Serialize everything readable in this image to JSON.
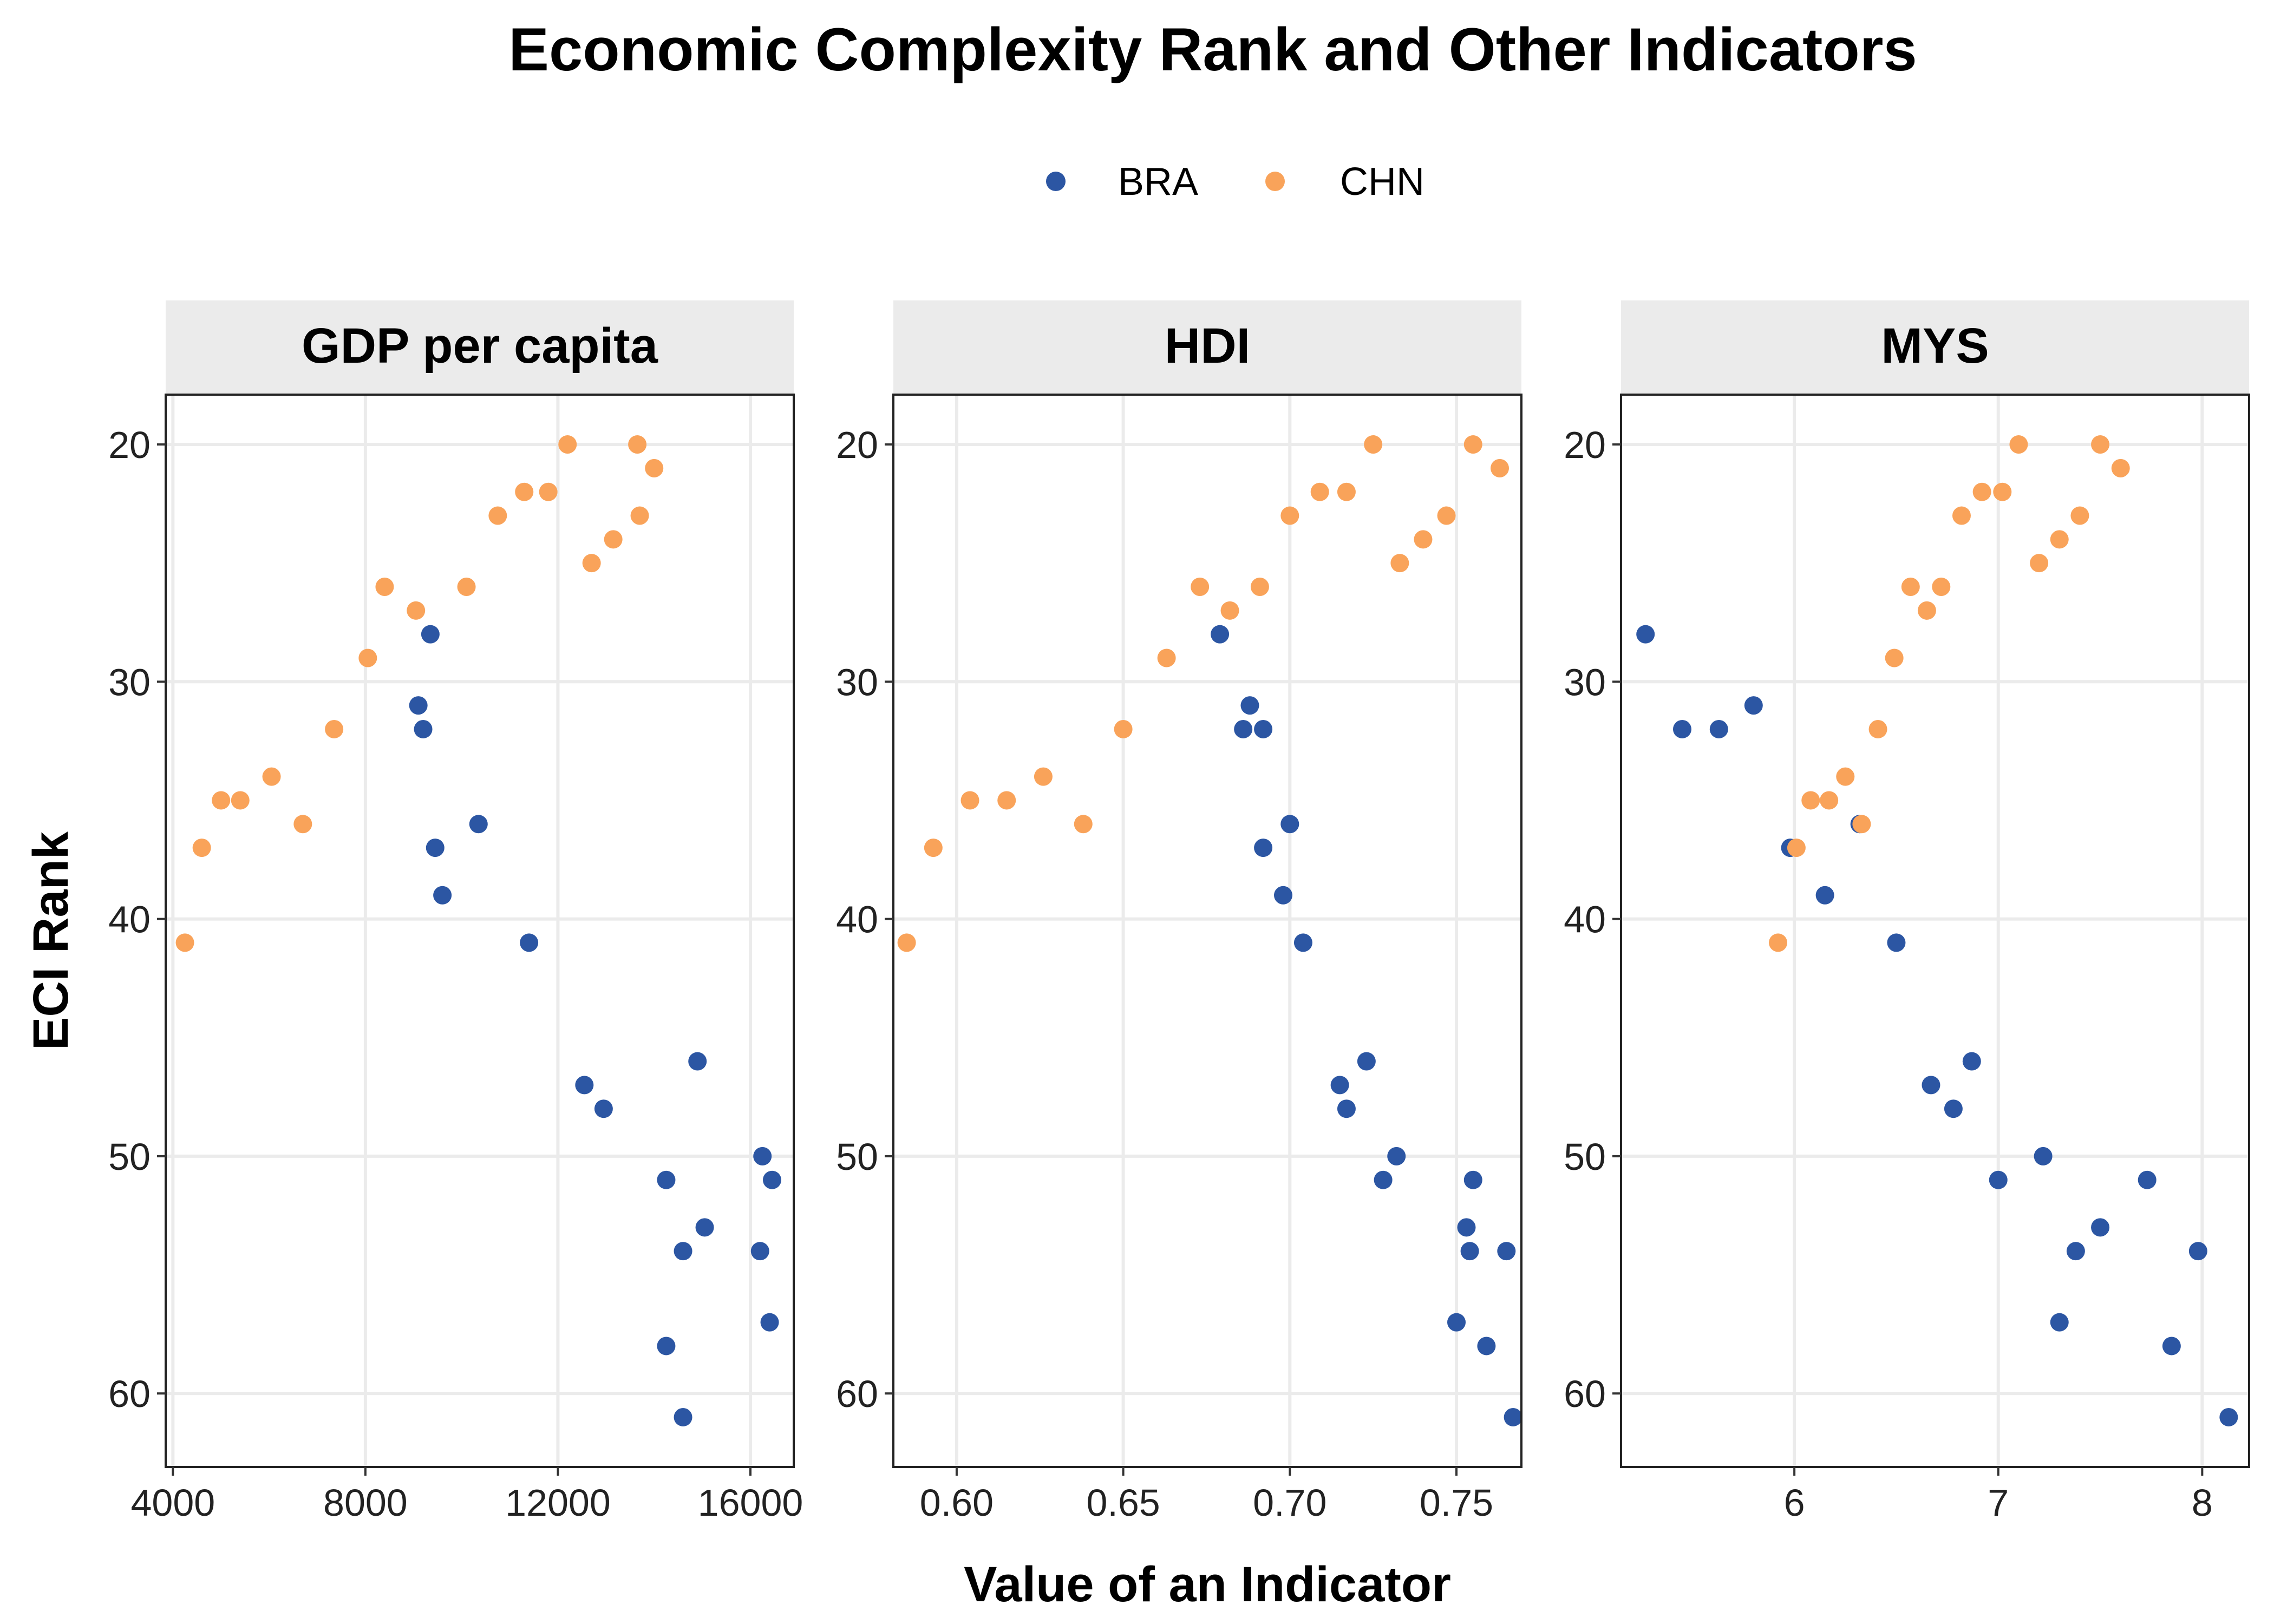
{
  "chart_data": {
    "type": "scatter",
    "title": "Economic Complexity Rank and Other Indicators",
    "xlabel": "Value of an Indicator",
    "ylabel": "ECI Rank",
    "legend": {
      "position": "top",
      "entries": [
        "BRA",
        "CHN"
      ]
    },
    "grid": true,
    "colors": {
      "BRA": "#2c56a3",
      "CHN": "#f9a35a"
    },
    "y_reversed": true,
    "ylim": [
      17.9,
      63.1
    ],
    "yticks": [
      20,
      30,
      40,
      50,
      60
    ],
    "panels": [
      {
        "name": "GDP per capita",
        "xlim": [
          3850,
          16900
        ],
        "xticks": [
          4000,
          8000,
          12000,
          16000
        ],
        "series": [
          {
            "name": "BRA",
            "points": [
              [
                9350,
                28
              ],
              [
                9100,
                31
              ],
              [
                9200,
                32
              ],
              [
                9450,
                37
              ],
              [
                10350,
                36
              ],
              [
                9600,
                39
              ],
              [
                11400,
                41
              ],
              [
                12550,
                47
              ],
              [
                12950,
                48
              ],
              [
                14900,
                46
              ],
              [
                14250,
                51
              ],
              [
                16250,
                50
              ],
              [
                16450,
                51
              ],
              [
                15050,
                53
              ],
              [
                14600,
                54
              ],
              [
                16200,
                54
              ],
              [
                16400,
                57
              ],
              [
                14250,
                58
              ],
              [
                14600,
                61
              ]
            ]
          },
          {
            "name": "CHN",
            "points": [
              [
                12200,
                20
              ],
              [
                13650,
                20
              ],
              [
                14000,
                21
              ],
              [
                11300,
                22
              ],
              [
                11800,
                22
              ],
              [
                10750,
                23
              ],
              [
                13700,
                23
              ],
              [
                13150,
                24
              ],
              [
                12700,
                25
              ],
              [
                8400,
                26
              ],
              [
                10100,
                26
              ],
              [
                9050,
                27
              ],
              [
                8050,
                29
              ],
              [
                7350,
                32
              ],
              [
                6050,
                34
              ],
              [
                5000,
                35
              ],
              [
                5400,
                35
              ],
              [
                6700,
                36
              ],
              [
                4600,
                37
              ],
              [
                4250,
                41
              ]
            ]
          }
        ]
      },
      {
        "name": "HDI",
        "xlim": [
          0.581,
          0.7695
        ],
        "xticks": [
          0.6,
          0.65,
          0.7,
          0.75
        ],
        "xtick_labels": [
          "0.60",
          "0.65",
          "0.70",
          "0.75"
        ],
        "series": [
          {
            "name": "BRA",
            "points": [
              [
                0.679,
                28
              ],
              [
                0.688,
                31
              ],
              [
                0.686,
                32
              ],
              [
                0.692,
                32
              ],
              [
                0.692,
                37
              ],
              [
                0.7,
                36
              ],
              [
                0.698,
                39
              ],
              [
                0.704,
                41
              ],
              [
                0.715,
                47
              ],
              [
                0.717,
                48
              ],
              [
                0.723,
                46
              ],
              [
                0.732,
                50
              ],
              [
                0.728,
                51
              ],
              [
                0.755,
                51
              ],
              [
                0.753,
                53
              ],
              [
                0.754,
                54
              ],
              [
                0.765,
                54
              ],
              [
                0.75,
                57
              ],
              [
                0.759,
                58
              ],
              [
                0.767,
                61
              ]
            ]
          },
          {
            "name": "CHN",
            "points": [
              [
                0.725,
                20
              ],
              [
                0.755,
                20
              ],
              [
                0.763,
                21
              ],
              [
                0.709,
                22
              ],
              [
                0.717,
                22
              ],
              [
                0.7,
                23
              ],
              [
                0.747,
                23
              ],
              [
                0.74,
                24
              ],
              [
                0.733,
                25
              ],
              [
                0.673,
                26
              ],
              [
                0.691,
                26
              ],
              [
                0.682,
                27
              ],
              [
                0.663,
                29
              ],
              [
                0.65,
                32
              ],
              [
                0.626,
                34
              ],
              [
                0.604,
                35
              ],
              [
                0.615,
                35
              ],
              [
                0.638,
                36
              ],
              [
                0.593,
                37
              ],
              [
                0.585,
                41
              ]
            ]
          }
        ]
      },
      {
        "name": "MYS",
        "xlim": [
          5.15,
          8.23
        ],
        "xticks": [
          6,
          7,
          8
        ],
        "series": [
          {
            "name": "BRA",
            "points": [
              [
                5.27,
                28
              ],
              [
                5.8,
                31
              ],
              [
                5.45,
                32
              ],
              [
                5.63,
                32
              ],
              [
                5.98,
                37
              ],
              [
                6.32,
                36
              ],
              [
                6.15,
                39
              ],
              [
                6.5,
                41
              ],
              [
                6.67,
                47
              ],
              [
                6.78,
                48
              ],
              [
                6.87,
                46
              ],
              [
                7.22,
                50
              ],
              [
                7.0,
                51
              ],
              [
                7.73,
                51
              ],
              [
                7.5,
                53
              ],
              [
                7.38,
                54
              ],
              [
                7.98,
                54
              ],
              [
                7.3,
                57
              ],
              [
                7.85,
                58
              ],
              [
                8.13,
                61
              ]
            ]
          },
          {
            "name": "CHN",
            "points": [
              [
                7.1,
                20
              ],
              [
                7.5,
                20
              ],
              [
                7.6,
                21
              ],
              [
                6.92,
                22
              ],
              [
                7.02,
                22
              ],
              [
                6.82,
                23
              ],
              [
                7.4,
                23
              ],
              [
                7.3,
                24
              ],
              [
                7.2,
                25
              ],
              [
                6.57,
                26
              ],
              [
                6.72,
                26
              ],
              [
                6.65,
                27
              ],
              [
                6.49,
                29
              ],
              [
                6.41,
                32
              ],
              [
                6.25,
                34
              ],
              [
                6.08,
                35
              ],
              [
                6.17,
                35
              ],
              [
                6.33,
                36
              ],
              [
                6.01,
                37
              ],
              [
                5.92,
                41
              ]
            ]
          }
        ]
      }
    ]
  }
}
